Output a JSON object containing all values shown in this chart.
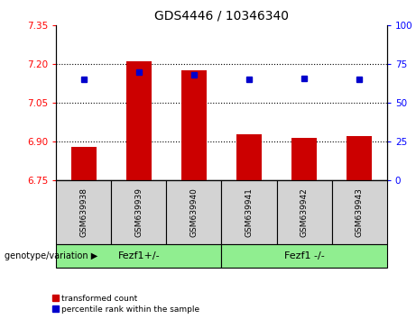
{
  "title": "GDS4446 / 10346340",
  "samples": [
    "GSM639938",
    "GSM639939",
    "GSM639940",
    "GSM639941",
    "GSM639942",
    "GSM639943"
  ],
  "bar_values": [
    6.88,
    7.21,
    7.175,
    6.93,
    6.915,
    6.92
  ],
  "percentile_values": [
    65,
    70,
    68,
    65,
    66,
    65
  ],
  "bar_bottom": 6.75,
  "ylim_left": [
    6.75,
    7.35
  ],
  "yticks_left": [
    6.75,
    6.9,
    7.05,
    7.2,
    7.35
  ],
  "ylim_right": [
    0,
    100
  ],
  "yticks_right": [
    0,
    25,
    50,
    75,
    100
  ],
  "bar_color": "#cc0000",
  "dot_color": "#0000cc",
  "group1_label": "Fezf1+/-",
  "group2_label": "Fezf1 -/-",
  "group1_indices": [
    0,
    1,
    2
  ],
  "group2_indices": [
    3,
    4,
    5
  ],
  "group_bg_color": "#90ee90",
  "sample_bg_color": "#d3d3d3",
  "legend_bar_label": "transformed count",
  "legend_dot_label": "percentile rank within the sample",
  "xlabel_left": "genotype/variation",
  "title_fontsize": 10,
  "tick_fontsize": 7.5,
  "label_fontsize": 7.5,
  "grid_lines": [
    6.9,
    7.05,
    7.2
  ],
  "bar_width": 0.45
}
